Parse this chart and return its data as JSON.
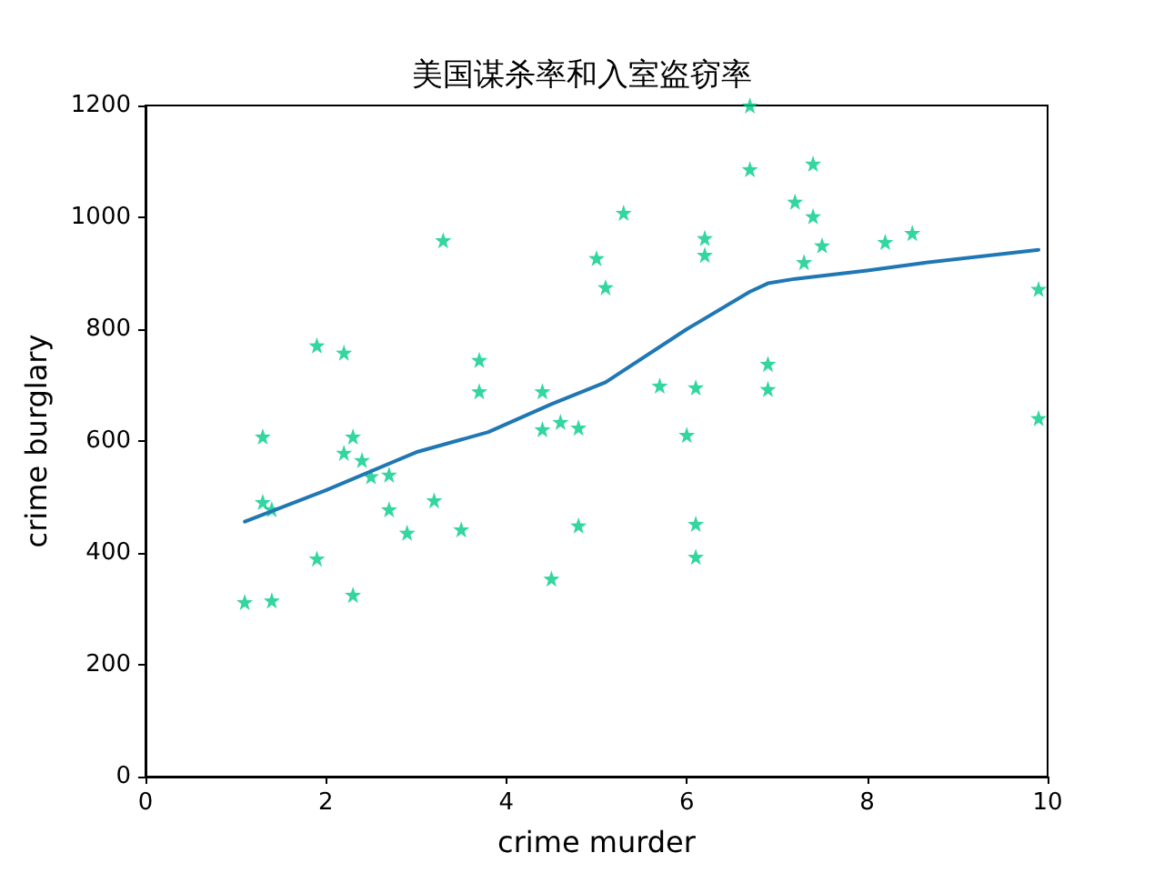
{
  "chart_data": {
    "type": "scatter",
    "title": "美国谋杀率和入室盗窃率",
    "xlabel": "crime murder",
    "ylabel": "crime burglary",
    "xlim": [
      0,
      10
    ],
    "xticks": [
      0,
      2,
      4,
      6,
      8,
      10
    ],
    "ylim": [
      0,
      1200
    ],
    "yticks": [
      0,
      200,
      400,
      600,
      800,
      1000,
      1200
    ],
    "grid": false,
    "series": [
      {
        "marker": "star",
        "color": "#00cc88",
        "x": [
          1.1,
          1.4,
          1.3,
          1.3,
          1.4,
          1.9,
          1.9,
          2.2,
          2.2,
          2.3,
          2.3,
          2.4,
          2.5,
          2.7,
          2.7,
          2.9,
          3.2,
          3.3,
          3.5,
          3.7,
          3.7,
          4.4,
          4.4,
          4.6,
          4.8,
          4.8,
          4.5,
          5.0,
          5.1,
          5.3,
          5.7,
          6.0,
          6.1,
          6.1,
          6.1,
          6.2,
          6.2,
          6.7,
          6.7,
          6.9,
          6.9,
          7.2,
          7.3,
          7.4,
          7.4,
          7.5,
          8.2,
          8.5,
          9.9,
          9.9
        ],
        "values": [
          312,
          315,
          608,
          491,
          478,
          771,
          390,
          758,
          579,
          608,
          325,
          566,
          537,
          540,
          478,
          436,
          494,
          959,
          442,
          745,
          689,
          689,
          621,
          634,
          624,
          449,
          354,
          927,
          875,
          1008,
          699,
          611,
          696,
          452,
          393,
          963,
          933,
          1200,
          1086,
          738,
          693,
          1028,
          920,
          1096,
          1002,
          950,
          956,
          972,
          872,
          641
        ]
      },
      {
        "type": "line",
        "marker": "none",
        "line_style": "solid",
        "color": "#1f77b4",
        "x": [
          1.1,
          2,
          3,
          3.8,
          4.5,
          5.1,
          6,
          6.7,
          6.9,
          7.2,
          8,
          8.6,
          9.9
        ],
        "values": [
          456,
          512,
          580,
          616,
          666,
          705,
          800,
          867,
          882,
          890,
          905,
          918,
          942
        ]
      }
    ]
  }
}
